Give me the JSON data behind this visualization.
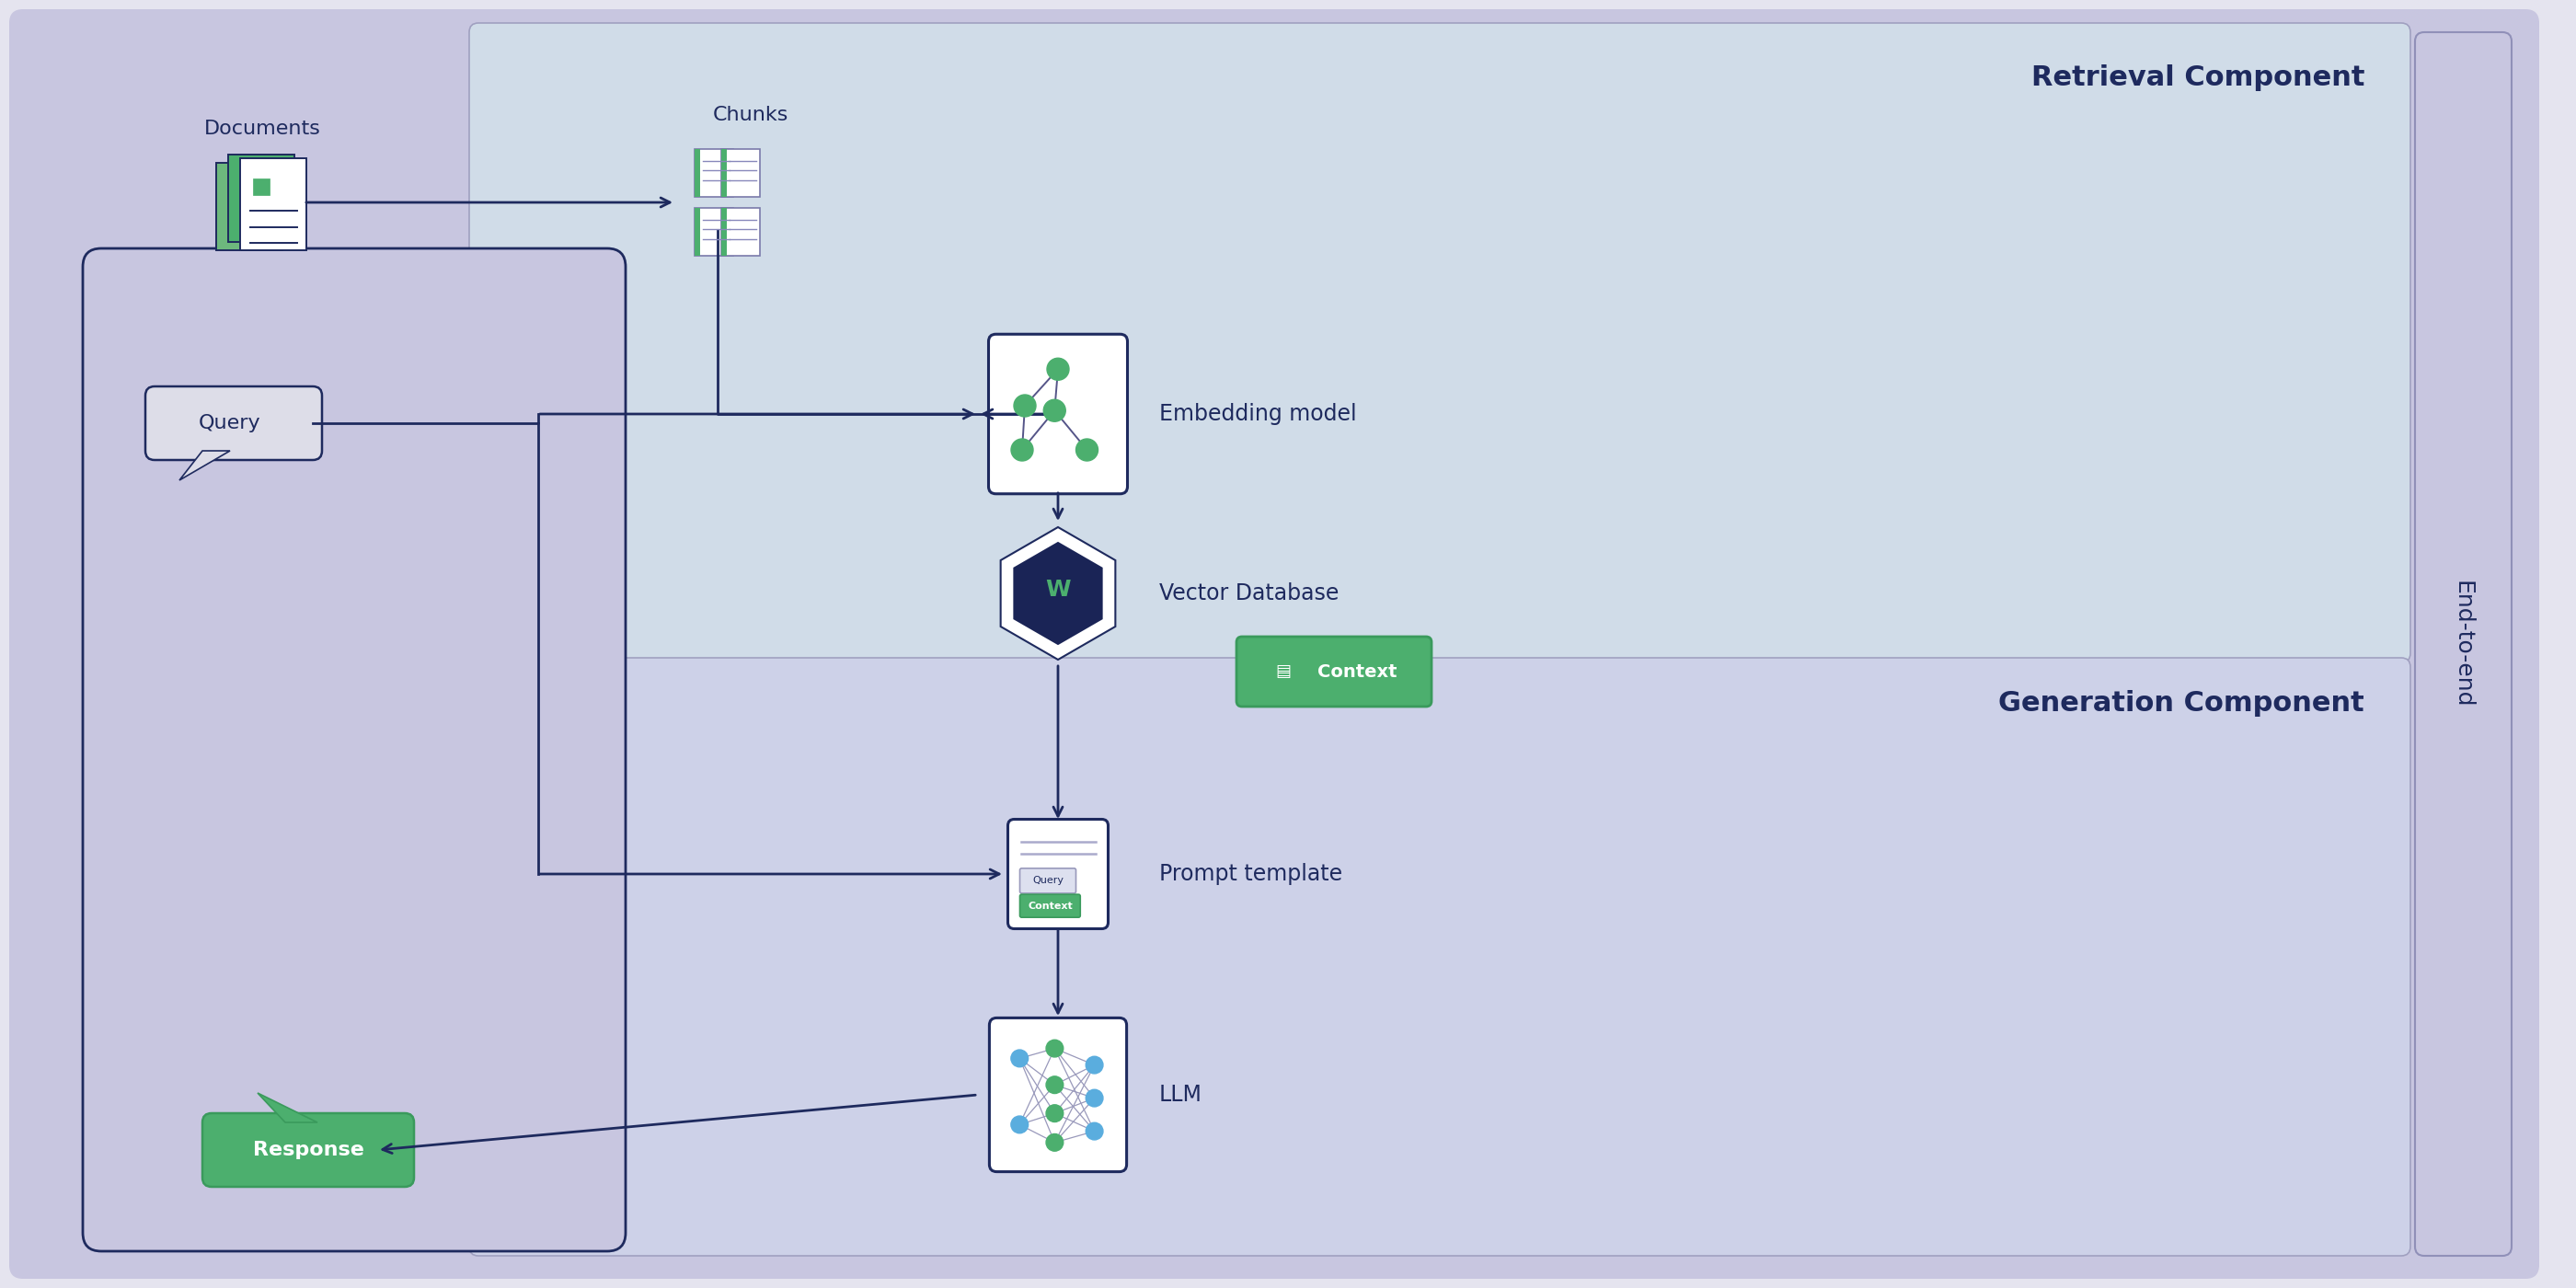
{
  "bg_outer": "#e5e4ef",
  "bg_purple": "#c8c6e0",
  "bg_retrieval": "#d0dce8",
  "bg_generation": "#cdd1e8",
  "color_dark": "#1e2a5e",
  "color_green": "#4caf6e",
  "color_green_dark": "#3a9a5c",
  "color_white": "#ffffff",
  "title_retrieval": "Retrieval Component",
  "title_generation": "Generation Component",
  "label_documents": "Documents",
  "label_chunks": "Chunks",
  "label_embedding": "Embedding model",
  "label_vector_db": "Vector Database",
  "label_context": "Context",
  "label_prompt": "Prompt template",
  "label_llm": "LLM",
  "label_query": "Query",
  "label_response": "Response",
  "label_end_to_end": "End-to-end"
}
